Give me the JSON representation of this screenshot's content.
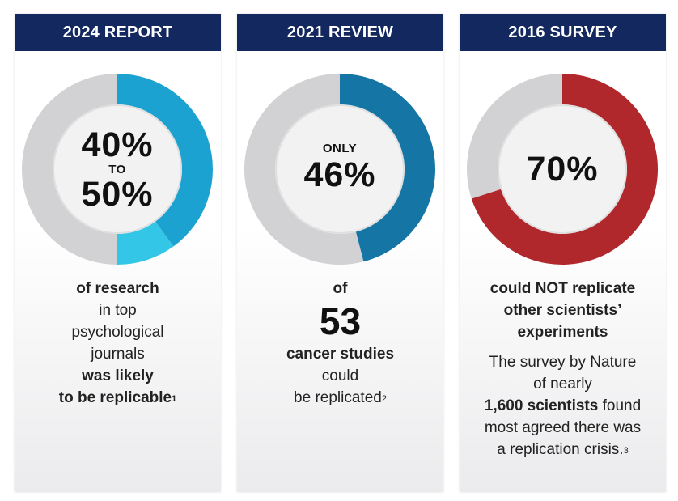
{
  "chart_data": [
    {
      "type": "pie",
      "title": "2024 REPORT",
      "segments": [
        {
          "label": "40%",
          "value": 40,
          "color": "#1ba2d0"
        },
        {
          "label": "additional up to 50%",
          "value": 10,
          "color": "#33c6e6"
        },
        {
          "label": "remainder",
          "value": 50,
          "color": "#d2d2d4"
        }
      ],
      "center": {
        "top": "40%",
        "middle": "TO",
        "bottom": "50%"
      },
      "description": {
        "l1": "of research",
        "l2": "in top",
        "l3": "psychological",
        "l4": "journals",
        "l5": "was likely",
        "l6": "to be replicable",
        "footnote": "1"
      }
    },
    {
      "type": "pie",
      "title": "2021 REVIEW",
      "segments": [
        {
          "label": "46%",
          "value": 46,
          "color": "#1576a6"
        },
        {
          "label": "remainder",
          "value": 54,
          "color": "#d2d2d4"
        }
      ],
      "center": {
        "top": "ONLY",
        "bottom": "46%"
      },
      "description": {
        "l1": "of",
        "number": "53",
        "l2": "cancer studies",
        "l3": "could",
        "l4": "be replicated",
        "footnote": "2"
      }
    },
    {
      "type": "pie",
      "title": "2016 SURVEY",
      "segments": [
        {
          "label": "70%",
          "value": 70,
          "color": "#b0282c"
        },
        {
          "label": "remainder",
          "value": 30,
          "color": "#d2d2d4"
        }
      ],
      "center": {
        "value": "70%"
      },
      "description": {
        "l1": "could NOT replicate",
        "l2": "other scientists’",
        "l3": "experiments",
        "p1": "The survey by Nature",
        "p2": "of nearly",
        "p3_bold": "1,600 scientists",
        "p3_rest": " found",
        "p4": "most agreed there was",
        "p5": "a replication crisis.",
        "footnote": "3"
      }
    }
  ]
}
